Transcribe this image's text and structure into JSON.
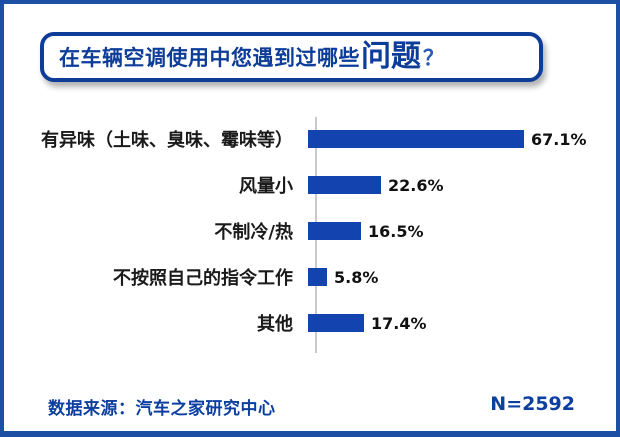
{
  "frame": {
    "background": "#ffffff",
    "border_color": "#1d4fa4"
  },
  "title": {
    "prefix": "在车辆空调使用中您遇到过哪些",
    "highlight": "问题",
    "suffix": "？",
    "text_color": "#0d3d99",
    "border_color": "#0d3d99"
  },
  "chart_data": {
    "type": "bar",
    "orientation": "horizontal",
    "title": "在车辆空调使用中您遇到过哪些问题？",
    "categories": [
      "有异味（土味、臭味、霉味等）",
      "风量小",
      "不制冷/热",
      "不按照自己的指令工作",
      "其他"
    ],
    "values": [
      67.1,
      22.6,
      16.5,
      5.8,
      17.4
    ],
    "value_labels": [
      "67.1%",
      "22.6%",
      "16.5%",
      "5.8%",
      "17.4%"
    ],
    "xlim": [
      0,
      70
    ],
    "grid": "off",
    "legend": "none",
    "bar_color": "#1243ae",
    "axis_color": "#c9c9c9",
    "label_color": "#1a1a1a"
  },
  "footer": {
    "source": "数据来源：汽车之家研究中心",
    "sample": "N=2592"
  }
}
